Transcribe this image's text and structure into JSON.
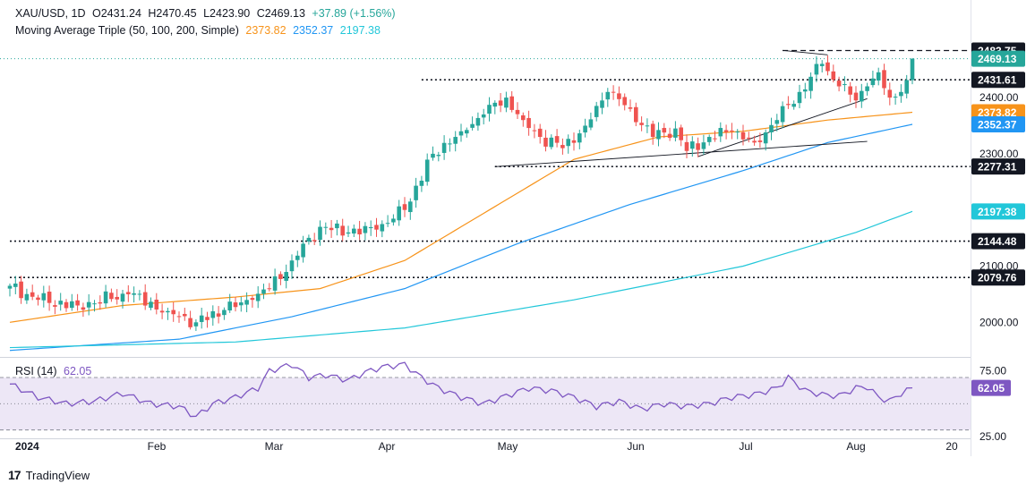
{
  "header": {
    "symbol": "XAU/USD, 1D",
    "open": "O2431.24",
    "high": "H2470.45",
    "low": "L2423.90",
    "close": "C2469.13",
    "change": "+37.89 (+1.56%)",
    "ma_label": "Moving Average Triple (50, 100, 200, Simple)",
    "ma50": "2373.82",
    "ma100": "2352.37",
    "ma200": "2197.38",
    "rsi_label": "RSI (14)",
    "rsi_value": "62.05"
  },
  "brand": {
    "logo": "17",
    "name": "TradingView"
  },
  "colors": {
    "up": "#26a69a",
    "down": "#ef5350",
    "ma50": "#f7931a",
    "ma100": "#2196f3",
    "ma200": "#22c7d9",
    "rsi": "#7e57c2",
    "rsi_band": "#ede7f6"
  },
  "chart_data": [
    {
      "type": "candlestick",
      "title": "XAU/USD, 1D",
      "x_ticks": [
        "2024",
        "Feb",
        "Mar",
        "Apr",
        "May",
        "Jun",
        "Jul",
        "Aug",
        "20"
      ],
      "y_ticks": [
        2000.0,
        2100.0,
        2200.0,
        2300.0,
        2400.0
      ],
      "ylim": [
        1940,
        2510
      ],
      "price_labels": [
        {
          "value": 2483.75,
          "label": "2483.75",
          "kind": "level"
        },
        {
          "value": 2469.13,
          "label": "2469.13",
          "kind": "last"
        },
        {
          "value": 2431.61,
          "label": "2431.61",
          "kind": "level"
        },
        {
          "value": 2373.82,
          "label": "2373.82",
          "kind": "ma50"
        },
        {
          "value": 2352.37,
          "label": "2352.37",
          "kind": "ma100"
        },
        {
          "value": 2277.31,
          "label": "2277.31",
          "kind": "level"
        },
        {
          "value": 2197.38,
          "label": "2197.38",
          "kind": "ma200"
        },
        {
          "value": 2144.48,
          "label": "2144.48",
          "kind": "level"
        },
        {
          "value": 2079.76,
          "label": "2079.76",
          "kind": "level"
        }
      ],
      "candle_days": 161,
      "close_anchors": [
        {
          "i": 0,
          "c": 2065
        },
        {
          "i": 5,
          "c": 2040
        },
        {
          "i": 12,
          "c": 2030
        },
        {
          "i": 21,
          "c": 2050
        },
        {
          "i": 28,
          "c": 2020
        },
        {
          "i": 33,
          "c": 2000
        },
        {
          "i": 38,
          "c": 2022
        },
        {
          "i": 43,
          "c": 2040
        },
        {
          "i": 46,
          "c": 2060
        },
        {
          "i": 50,
          "c": 2110
        },
        {
          "i": 55,
          "c": 2170
        },
        {
          "i": 60,
          "c": 2160
        },
        {
          "i": 65,
          "c": 2165
        },
        {
          "i": 70,
          "c": 2200
        },
        {
          "i": 75,
          "c": 2300
        },
        {
          "i": 80,
          "c": 2340
        },
        {
          "i": 84,
          "c": 2370
        },
        {
          "i": 88,
          "c": 2400
        },
        {
          "i": 91,
          "c": 2360
        },
        {
          "i": 94,
          "c": 2330
        },
        {
          "i": 98,
          "c": 2310
        },
        {
          "i": 102,
          "c": 2350
        },
        {
          "i": 106,
          "c": 2410
        },
        {
          "i": 110,
          "c": 2380
        },
        {
          "i": 114,
          "c": 2330
        },
        {
          "i": 118,
          "c": 2345
        },
        {
          "i": 120,
          "c": 2305
        },
        {
          "i": 124,
          "c": 2330
        },
        {
          "i": 128,
          "c": 2340
        },
        {
          "i": 132,
          "c": 2320
        },
        {
          "i": 136,
          "c": 2360
        },
        {
          "i": 140,
          "c": 2410
        },
        {
          "i": 144,
          "c": 2460
        },
        {
          "i": 147,
          "c": 2420
        },
        {
          "i": 150,
          "c": 2395
        },
        {
          "i": 152,
          "c": 2420
        },
        {
          "i": 154,
          "c": 2445
        },
        {
          "i": 156,
          "c": 2400
        },
        {
          "i": 158,
          "c": 2410
        },
        {
          "i": 159,
          "c": 2431.24
        },
        {
          "i": 160,
          "c": 2469.13
        }
      ],
      "last_candle": {
        "o": 2431.24,
        "h": 2470.45,
        "l": 2423.9,
        "c": 2469.13
      },
      "moving_averages": [
        {
          "name": "MA 50",
          "last": 2373.82,
          "points": [
            [
              0,
              2000
            ],
            [
              20,
              2030
            ],
            [
              40,
              2045
            ],
            [
              55,
              2060
            ],
            [
              70,
              2110
            ],
            [
              85,
              2200
            ],
            [
              100,
              2290
            ],
            [
              115,
              2330
            ],
            [
              130,
              2340
            ],
            [
              145,
              2360
            ],
            [
              160,
              2373.82
            ]
          ]
        },
        {
          "name": "MA 100",
          "last": 2352.37,
          "points": [
            [
              0,
              1950
            ],
            [
              30,
              1970
            ],
            [
              50,
              2010
            ],
            [
              70,
              2060
            ],
            [
              90,
              2140
            ],
            [
              110,
              2210
            ],
            [
              130,
              2270
            ],
            [
              145,
              2320
            ],
            [
              160,
              2352.37
            ]
          ]
        },
        {
          "name": "MA 200",
          "last": 2197.38,
          "points": [
            [
              0,
              1955
            ],
            [
              40,
              1965
            ],
            [
              70,
              1990
            ],
            [
              100,
              2040
            ],
            [
              130,
              2100
            ],
            [
              150,
              2160
            ],
            [
              160,
              2197.38
            ]
          ]
        }
      ],
      "horizontal_levels": [
        {
          "value": 2483.75,
          "from": 137,
          "style": "dashed"
        },
        {
          "value": 2431.61,
          "from": 73,
          "style": "dotted"
        },
        {
          "value": 2277.31,
          "from": 86,
          "style": "dotted"
        },
        {
          "value": 2144.48,
          "from": 0,
          "style": "dotted"
        },
        {
          "value": 2079.76,
          "from": 0,
          "style": "dotted"
        }
      ],
      "trend_lines": [
        {
          "from": [
            86,
            2277
          ],
          "to": [
            152,
            2322
          ]
        },
        {
          "from": [
            122,
            2295
          ],
          "to": [
            152,
            2398
          ]
        },
        {
          "from": [
            137,
            2484
          ],
          "to": [
            145,
            2476
          ]
        }
      ]
    },
    {
      "type": "line",
      "title": "RSI (14)",
      "y_ticks": [
        25.0,
        75.0
      ],
      "band": [
        30,
        70
      ],
      "midline": 50,
      "ylim": [
        25,
        85
      ],
      "last": 62.05,
      "points": [
        [
          0,
          65
        ],
        [
          5,
          55
        ],
        [
          10,
          50
        ],
        [
          15,
          52
        ],
        [
          20,
          58
        ],
        [
          25,
          50
        ],
        [
          30,
          48
        ],
        [
          33,
          40
        ],
        [
          36,
          50
        ],
        [
          40,
          55
        ],
        [
          44,
          62
        ],
        [
          46,
          75
        ],
        [
          50,
          80
        ],
        [
          53,
          70
        ],
        [
          56,
          72
        ],
        [
          60,
          68
        ],
        [
          63,
          74
        ],
        [
          66,
          78
        ],
        [
          70,
          80
        ],
        [
          73,
          70
        ],
        [
          76,
          62
        ],
        [
          80,
          55
        ],
        [
          84,
          50
        ],
        [
          88,
          56
        ],
        [
          92,
          62
        ],
        [
          96,
          60
        ],
        [
          100,
          55
        ],
        [
          104,
          48
        ],
        [
          108,
          52
        ],
        [
          112,
          46
        ],
        [
          116,
          50
        ],
        [
          120,
          48
        ],
        [
          124,
          50
        ],
        [
          128,
          55
        ],
        [
          132,
          57
        ],
        [
          136,
          62
        ],
        [
          138,
          70
        ],
        [
          141,
          60
        ],
        [
          144,
          57
        ],
        [
          147,
          56
        ],
        [
          150,
          62
        ],
        [
          152,
          63
        ],
        [
          154,
          55
        ],
        [
          156,
          52
        ],
        [
          158,
          58
        ],
        [
          160,
          62.05
        ]
      ]
    }
  ]
}
